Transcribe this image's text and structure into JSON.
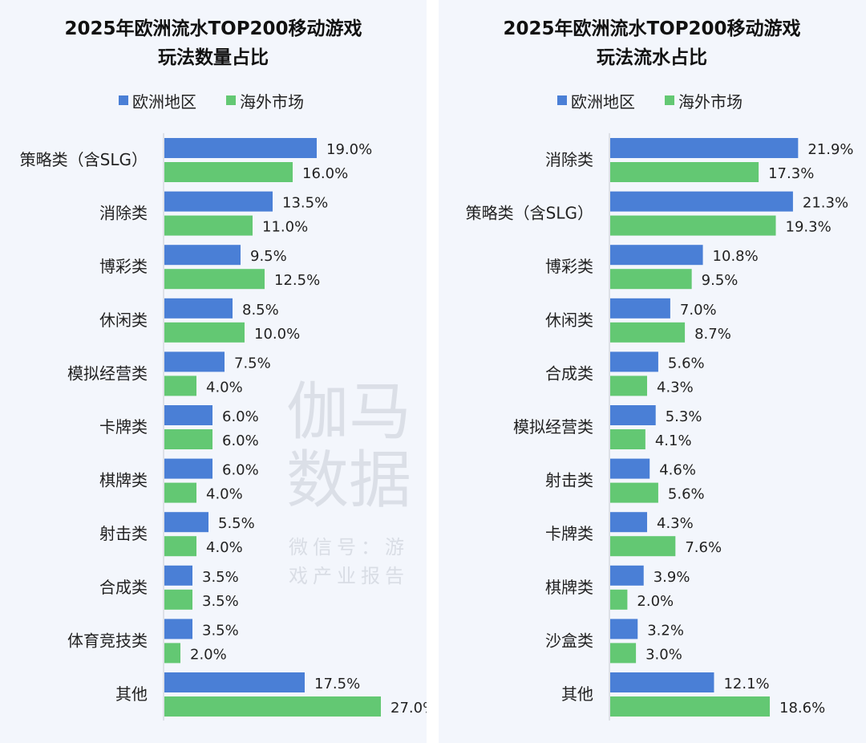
{
  "colors": {
    "europe": "#4a7fd6",
    "overseas": "#63c873",
    "axis": "#c8ccd2",
    "background": "#f3f6fc"
  },
  "watermark": {
    "main": "伽马数据",
    "sub": "微信号：游戏产业报告"
  },
  "chart_data": [
    {
      "type": "bar",
      "orientation": "horizontal",
      "title": [
        "2025年欧洲流水TOP200移动游戏",
        "玩法数量占比"
      ],
      "legend": {
        "placement": "top",
        "entries": [
          "欧洲地区",
          "海外市场"
        ]
      },
      "categories": [
        "策略类（含SLG）",
        "消除类",
        "博彩类",
        "休闲类",
        "模拟经营类",
        "卡牌类",
        "棋牌类",
        "射击类",
        "合成类",
        "体育竞技类",
        "其他"
      ],
      "series": [
        {
          "name": "欧洲地区",
          "values": [
            19.0,
            13.5,
            9.5,
            8.5,
            7.5,
            6.0,
            6.0,
            5.5,
            3.5,
            3.5,
            17.5
          ]
        },
        {
          "name": "海外市场",
          "values": [
            16.0,
            11.0,
            12.5,
            10.0,
            4.0,
            6.0,
            4.0,
            4.0,
            3.5,
            2.0,
            27.0
          ]
        }
      ],
      "unit": "%",
      "xlim": [
        0,
        27
      ],
      "grid": false
    },
    {
      "type": "bar",
      "orientation": "horizontal",
      "title": [
        "2025年欧洲流水TOP200移动游戏",
        "玩法流水占比"
      ],
      "legend": {
        "placement": "top",
        "entries": [
          "欧洲地区",
          "海外市场"
        ]
      },
      "categories": [
        "消除类",
        "策略类（含SLG）",
        "博彩类",
        "休闲类",
        "合成类",
        "模拟经营类",
        "射击类",
        "卡牌类",
        "棋牌类",
        "沙盒类",
        "其他"
      ],
      "series": [
        {
          "name": "欧洲地区",
          "values": [
            21.9,
            21.3,
            10.8,
            7.0,
            5.6,
            5.3,
            4.6,
            4.3,
            3.9,
            3.2,
            12.1
          ]
        },
        {
          "name": "海外市场",
          "values": [
            17.3,
            19.3,
            9.5,
            8.7,
            4.3,
            4.1,
            5.6,
            7.6,
            2.0,
            3.0,
            18.6
          ]
        }
      ],
      "unit": "%",
      "xlim": [
        0,
        22
      ],
      "grid": false
    }
  ]
}
